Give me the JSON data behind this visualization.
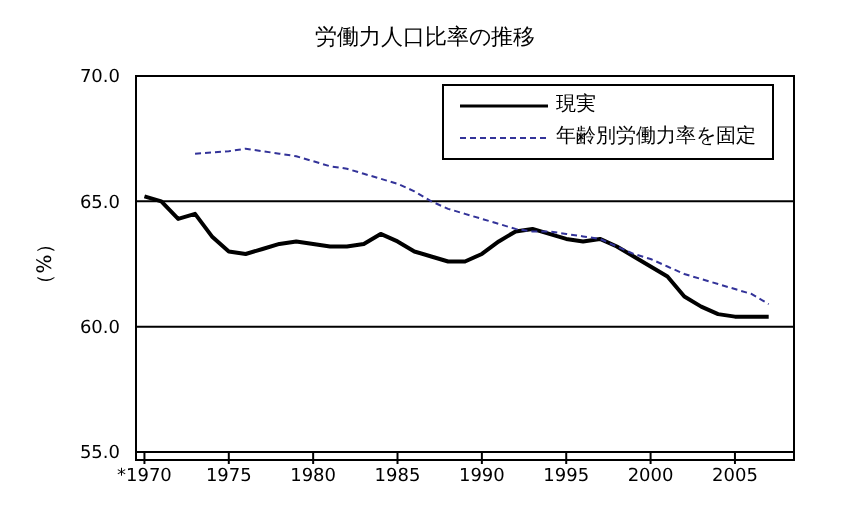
{
  "chart_data": {
    "type": "line",
    "title": "労働力人口比率の推移",
    "ylabel": "（%）",
    "x": [
      1970,
      1971,
      1972,
      1973,
      1974,
      1975,
      1976,
      1977,
      1978,
      1979,
      1980,
      1981,
      1982,
      1983,
      1984,
      1985,
      1986,
      1987,
      1988,
      1989,
      1990,
      1991,
      1992,
      1993,
      1994,
      1995,
      1996,
      1997,
      1998,
      1999,
      2000,
      2001,
      2002,
      2003,
      2004,
      2005,
      2006,
      2007
    ],
    "series": [
      {
        "name": "現実",
        "color": "#000000",
        "line_style": "solid",
        "values": [
          65.2,
          65.0,
          64.3,
          64.5,
          63.6,
          63.0,
          62.9,
          63.1,
          63.3,
          63.4,
          63.3,
          63.2,
          63.2,
          63.3,
          63.7,
          63.4,
          63.0,
          62.8,
          62.6,
          62.6,
          62.9,
          63.4,
          63.8,
          63.9,
          63.7,
          63.5,
          63.4,
          63.5,
          63.2,
          62.8,
          62.4,
          62.0,
          61.2,
          60.8,
          60.5,
          60.4,
          60.4,
          60.4
        ]
      },
      {
        "name": "年齢別労働力率を固定",
        "color": "#333399",
        "line_style": "dashed",
        "values": [
          null,
          null,
          null,
          66.9,
          66.95,
          67.0,
          67.1,
          67.0,
          66.9,
          66.8,
          66.6,
          66.4,
          66.3,
          66.1,
          65.9,
          65.7,
          65.4,
          65.0,
          64.7,
          64.5,
          64.3,
          64.1,
          63.9,
          63.8,
          63.8,
          63.7,
          63.6,
          63.5,
          63.2,
          62.9,
          62.7,
          62.4,
          62.1,
          61.9,
          61.7,
          61.5,
          61.3,
          60.9
        ]
      }
    ],
    "xlim": [
      1969.5,
      2008.5
    ],
    "xticks": [
      {
        "value": 1970,
        "label": "*1970"
      },
      1975,
      1980,
      1985,
      1990,
      1995,
      2000,
      2005
    ],
    "ylim": [
      55,
      70
    ],
    "yticks": [
      {
        "value": 55,
        "label": "55.0"
      },
      {
        "value": 60,
        "label": "60.0"
      },
      {
        "value": 65,
        "label": "65.0"
      },
      {
        "value": 70,
        "label": "70.0"
      }
    ],
    "grid": "y",
    "legend": "top right",
    "marker": "none"
  }
}
